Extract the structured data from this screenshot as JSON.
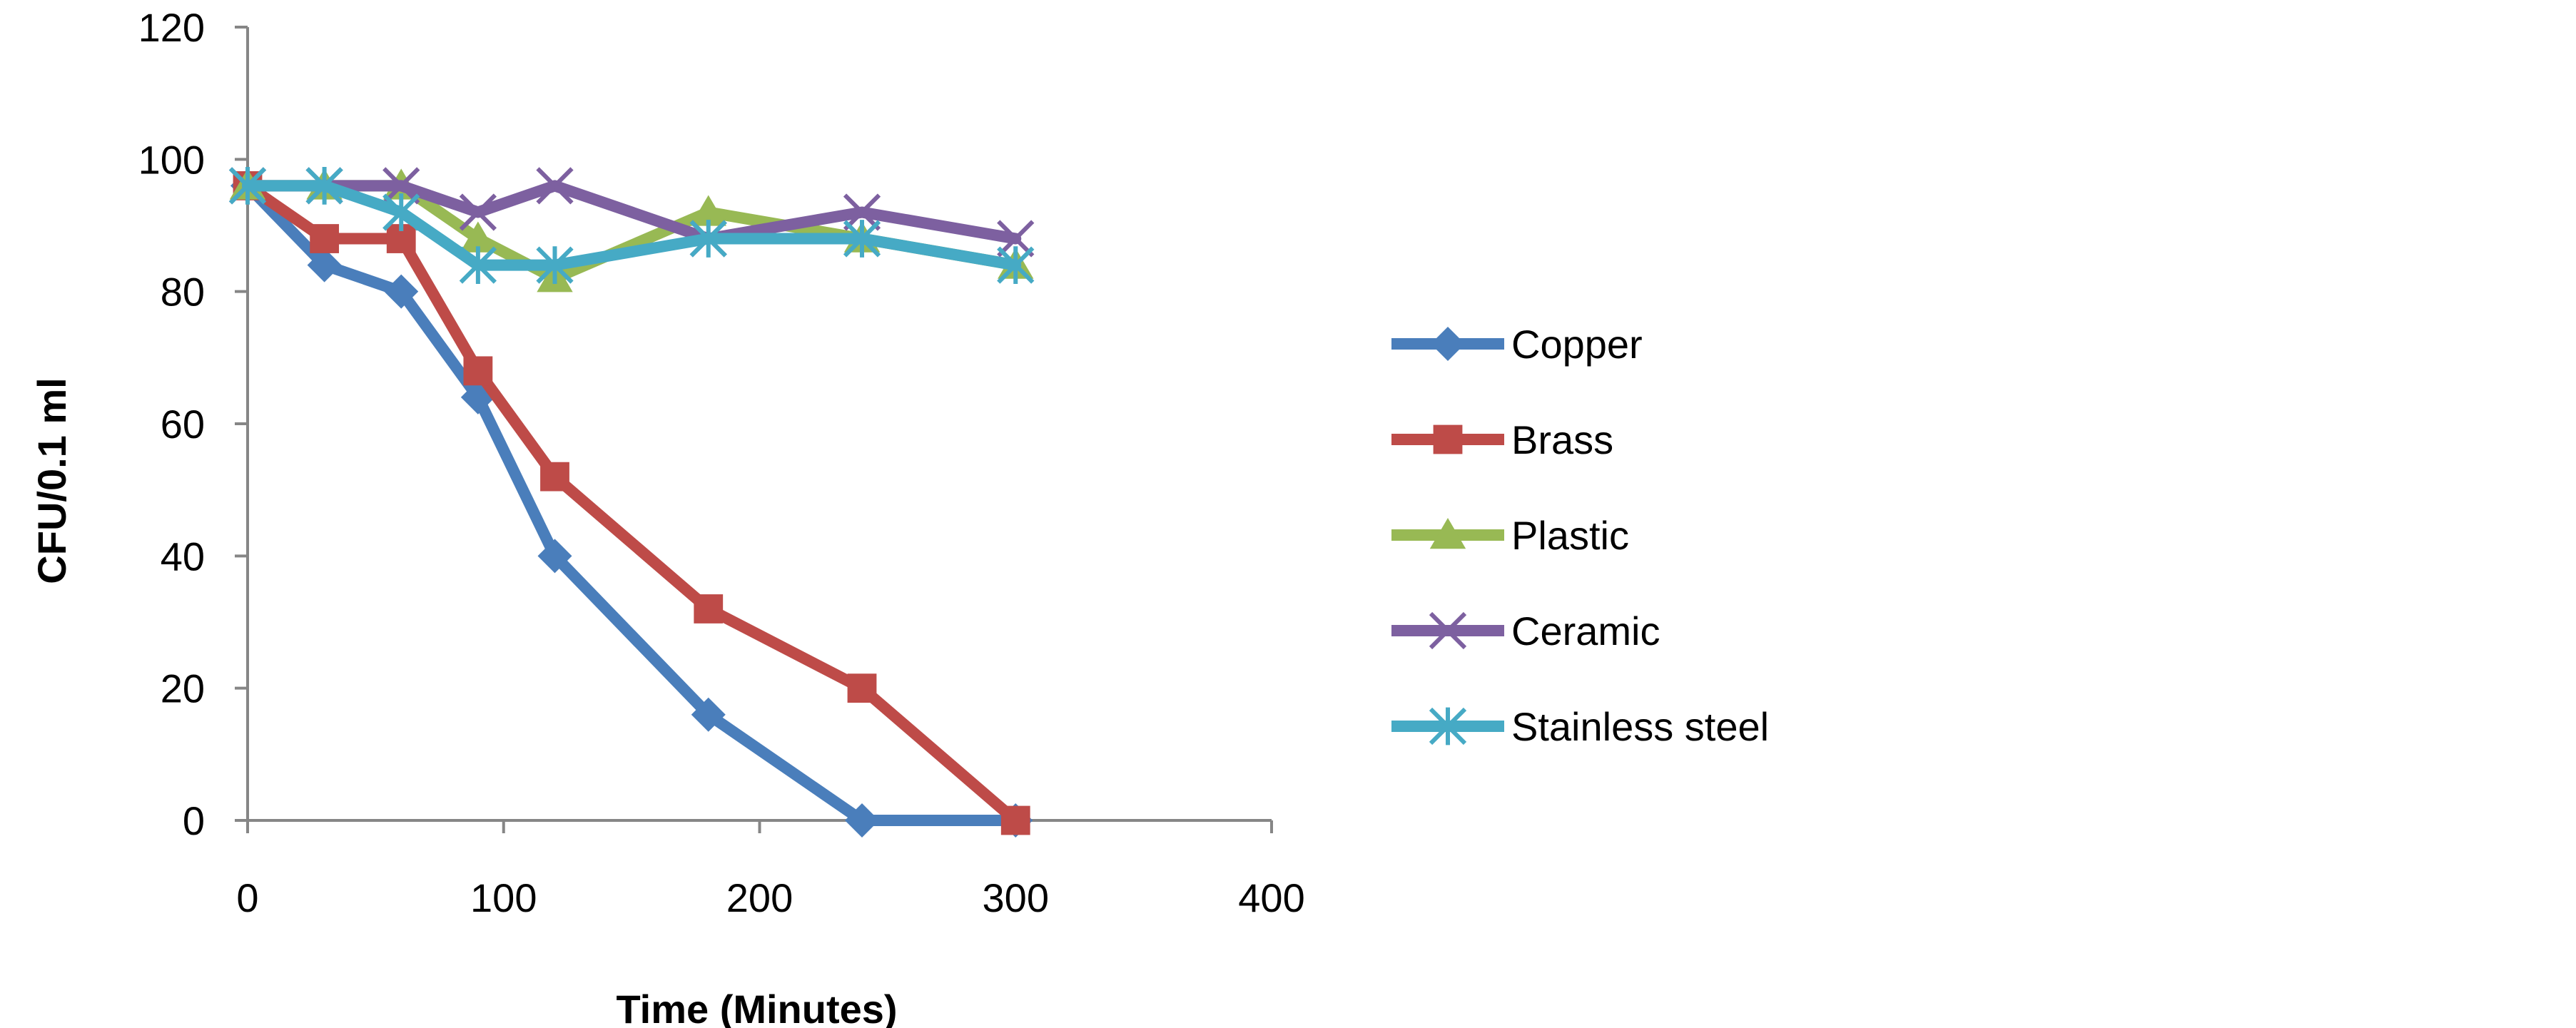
{
  "chart_data": {
    "type": "line",
    "title": "",
    "xlabel": "Time (Minutes)",
    "ylabel": "CFU/0.1 ml",
    "xlim": [
      0,
      400
    ],
    "ylim": [
      0,
      120
    ],
    "xticks": [
      0,
      100,
      200,
      300,
      400
    ],
    "yticks": [
      0,
      20,
      40,
      60,
      80,
      100,
      120
    ],
    "grid": false,
    "legend_position": "right",
    "x": [
      0,
      30,
      60,
      90,
      120,
      180,
      240,
      300
    ],
    "series": [
      {
        "name": "Copper",
        "color": "#4a7ebb",
        "marker": "diamond",
        "values": [
          96,
          84,
          80,
          64,
          40,
          16,
          0,
          0
        ]
      },
      {
        "name": "Brass",
        "color": "#be4b48",
        "marker": "square",
        "values": [
          96,
          88,
          88,
          68,
          52,
          32,
          20,
          0
        ]
      },
      {
        "name": "Plastic",
        "color": "#98b954",
        "marker": "triangle",
        "values": [
          96,
          96,
          96,
          88,
          82,
          92,
          88,
          84
        ]
      },
      {
        "name": "Ceramic",
        "color": "#7d60a0",
        "marker": "x",
        "values": [
          96,
          96,
          96,
          92,
          96,
          88,
          92,
          88
        ]
      },
      {
        "name": "Stainless steel",
        "color": "#46aac5",
        "marker": "star",
        "values": [
          96,
          96,
          92,
          84,
          84,
          88,
          88,
          84
        ]
      }
    ]
  }
}
